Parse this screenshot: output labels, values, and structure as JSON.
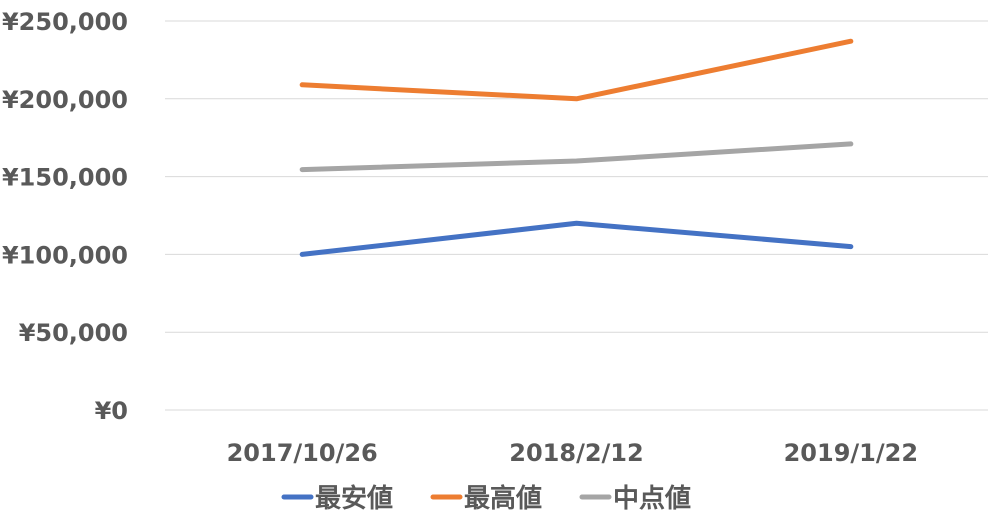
{
  "chart_data": {
    "type": "line",
    "categories": [
      "2017/10/26",
      "2018/2/12",
      "2019/1/22"
    ],
    "series": [
      {
        "name": "最安値",
        "color": "#4472C4",
        "values": [
          100000,
          120000,
          105000
        ]
      },
      {
        "name": "最高値",
        "color": "#ED7D31",
        "values": [
          209000,
          200000,
          237000
        ]
      },
      {
        "name": "中点値",
        "color": "#A5A5A5",
        "values": [
          154500,
          160000,
          171000
        ]
      }
    ],
    "y_ticks": [
      "¥0",
      "¥50,000",
      "¥100,000",
      "¥150,000",
      "¥200,000",
      "¥250,000"
    ],
    "ylim": [
      0,
      250000
    ],
    "grid": true,
    "legend_position": "bottom",
    "title": "",
    "xlabel": "",
    "ylabel": ""
  }
}
